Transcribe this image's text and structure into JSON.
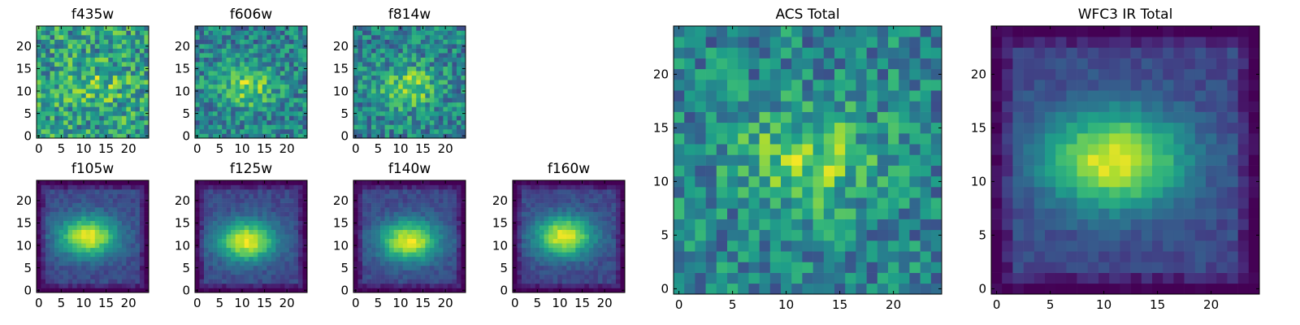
{
  "chart_data": [
    {
      "type": "heatmap",
      "title": "f435w",
      "grid_size": 25,
      "intensity": "noisy",
      "center": [
        12,
        11
      ],
      "xticks": [
        "0",
        "5",
        "10",
        "15",
        "20"
      ],
      "yticks": [
        "0",
        "5",
        "10",
        "15",
        "20"
      ],
      "xlim": [
        0,
        24
      ],
      "ylim": [
        0,
        24
      ],
      "colormap": "viridis"
    },
    {
      "type": "heatmap",
      "title": "f606w",
      "grid_size": 25,
      "intensity": "faint",
      "center": [
        11,
        11
      ],
      "xticks": [
        "0",
        "5",
        "10",
        "15",
        "20"
      ],
      "yticks": [
        "0",
        "5",
        "10",
        "15",
        "20"
      ],
      "xlim": [
        0,
        24
      ],
      "ylim": [
        0,
        24
      ],
      "colormap": "viridis"
    },
    {
      "type": "heatmap",
      "title": "f814w",
      "grid_size": 25,
      "intensity": "faint",
      "center": [
        12,
        11
      ],
      "xticks": [
        "0",
        "5",
        "10",
        "15",
        "20"
      ],
      "yticks": [
        "0",
        "5",
        "10",
        "15",
        "20"
      ],
      "xlim": [
        0,
        24
      ],
      "ylim": [
        0,
        24
      ],
      "colormap": "viridis"
    },
    {
      "type": "heatmap",
      "title": "f105w",
      "grid_size": 25,
      "intensity": "smooth",
      "center": [
        11,
        12
      ],
      "xticks": [
        "0",
        "5",
        "10",
        "15",
        "20"
      ],
      "yticks": [
        "0",
        "5",
        "10",
        "15",
        "20"
      ],
      "xlim": [
        0,
        24
      ],
      "ylim": [
        0,
        24
      ],
      "colormap": "viridis"
    },
    {
      "type": "heatmap",
      "title": "f125w",
      "grid_size": 25,
      "intensity": "smooth",
      "center": [
        11,
        11
      ],
      "xticks": [
        "0",
        "5",
        "10",
        "15",
        "20"
      ],
      "yticks": [
        "0",
        "5",
        "10",
        "15",
        "20"
      ],
      "xlim": [
        0,
        24
      ],
      "ylim": [
        0,
        24
      ],
      "colormap": "viridis"
    },
    {
      "type": "heatmap",
      "title": "f140w",
      "grid_size": 25,
      "intensity": "smooth",
      "center": [
        12,
        11
      ],
      "xticks": [
        "0",
        "5",
        "10",
        "15",
        "20"
      ],
      "yticks": [
        "0",
        "5",
        "10",
        "15",
        "20"
      ],
      "xlim": [
        0,
        24
      ],
      "ylim": [
        0,
        24
      ],
      "colormap": "viridis"
    },
    {
      "type": "heatmap",
      "title": "f160w",
      "grid_size": 25,
      "intensity": "smooth",
      "center": [
        11,
        12
      ],
      "xticks": [
        "0",
        "5",
        "10",
        "15",
        "20"
      ],
      "yticks": [
        "0",
        "5",
        "10",
        "15",
        "20"
      ],
      "xlim": [
        0,
        24
      ],
      "ylim": [
        0,
        24
      ],
      "colormap": "viridis"
    },
    {
      "type": "heatmap",
      "title": "ACS Total",
      "grid_size": 25,
      "intensity": "faint",
      "center": [
        12,
        12
      ],
      "xticks": [
        "0",
        "5",
        "10",
        "15",
        "20"
      ],
      "yticks": [
        "0",
        "5",
        "10",
        "15",
        "20"
      ],
      "xlim": [
        0,
        24
      ],
      "ylim": [
        0,
        24
      ],
      "colormap": "viridis"
    },
    {
      "type": "heatmap",
      "title": "WFC3 IR Total",
      "grid_size": 25,
      "intensity": "smooth",
      "center": [
        11,
        12
      ],
      "xticks": [
        "0",
        "5",
        "10",
        "15",
        "20"
      ],
      "yticks": [
        "0",
        "5",
        "10",
        "15",
        "20"
      ],
      "xlim": [
        0,
        24
      ],
      "ylim": [
        0,
        24
      ],
      "colormap": "viridis"
    }
  ],
  "colors": {
    "viridis_stops": [
      "#440154",
      "#482878",
      "#3e4989",
      "#31688e",
      "#26828e",
      "#1f9e89",
      "#35b779",
      "#6ece58",
      "#b5de2b",
      "#fde725"
    ],
    "frame": "#000000",
    "background": "#ffffff"
  }
}
